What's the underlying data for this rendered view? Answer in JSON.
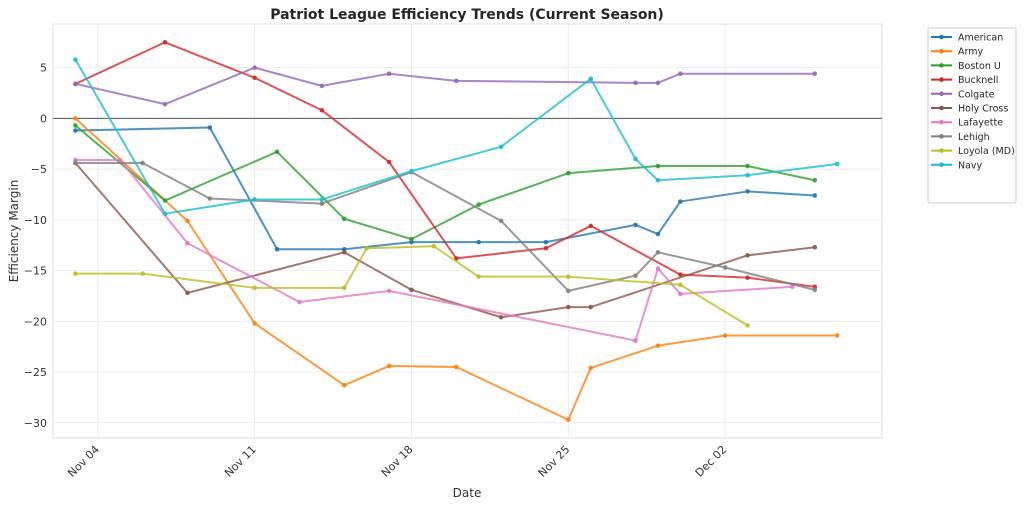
{
  "chart_data": {
    "type": "line",
    "title": "Patriot League Efficiency Trends (Current Season)",
    "xlabel": "Date",
    "ylabel": "Efficiency Margin",
    "x_tick_labels": [
      "Nov 04",
      "Nov 11",
      "Nov 18",
      "Nov 25",
      "Dec 02"
    ],
    "x_tick_dates": [
      "11-04",
      "11-11",
      "11-18",
      "11-25",
      "12-02"
    ],
    "y_ticks": [
      5,
      0,
      -5,
      -10,
      -15,
      -20,
      -25,
      -30
    ],
    "ylim": [
      -31.5,
      9.3
    ],
    "xlim": [
      "11-02",
      "12-09"
    ],
    "grid": true,
    "zero_line": true,
    "legend_position": "outside-top-right",
    "series": [
      {
        "name": "American",
        "color": "#1f77b4",
        "points": [
          [
            "11-03",
            -1.2
          ],
          [
            "11-09",
            -0.9
          ],
          [
            "11-12",
            -12.9
          ],
          [
            "11-15",
            -12.9
          ],
          [
            "11-18",
            -12.2
          ],
          [
            "11-21",
            -12.2
          ],
          [
            "11-24",
            -12.2
          ],
          [
            "11-28",
            -10.5
          ],
          [
            "11-29",
            -11.4
          ],
          [
            "11-30",
            -8.2
          ],
          [
            "12-03",
            -7.2
          ],
          [
            "12-06",
            -7.6
          ]
        ]
      },
      {
        "name": "Army",
        "color": "#ff7f0e",
        "points": [
          [
            "11-03",
            0.0
          ],
          [
            "11-08",
            -10.1
          ],
          [
            "11-11",
            -20.2
          ],
          [
            "11-15",
            -26.3
          ],
          [
            "11-17",
            -24.4
          ],
          [
            "11-20",
            -24.5
          ],
          [
            "11-25",
            -29.7
          ],
          [
            "11-26",
            -24.6
          ],
          [
            "11-29",
            -22.4
          ],
          [
            "12-02",
            -21.4
          ],
          [
            "12-07",
            -21.4
          ]
        ]
      },
      {
        "name": "Boston U",
        "color": "#2ca02c",
        "points": [
          [
            "11-03",
            -0.7
          ],
          [
            "11-07",
            -8.1
          ],
          [
            "11-12",
            -3.3
          ],
          [
            "11-15",
            -9.9
          ],
          [
            "11-18",
            -11.9
          ],
          [
            "11-21",
            -8.5
          ],
          [
            "11-25",
            -5.4
          ],
          [
            "11-29",
            -4.7
          ],
          [
            "12-03",
            -4.7
          ],
          [
            "12-06",
            -6.1
          ]
        ]
      },
      {
        "name": "Bucknell",
        "color": "#d62728",
        "points": [
          [
            "11-03",
            3.4
          ],
          [
            "11-07",
            7.5
          ],
          [
            "11-11",
            4.0
          ],
          [
            "11-14",
            0.8
          ],
          [
            "11-17",
            -4.3
          ],
          [
            "11-20",
            -13.8
          ],
          [
            "11-24",
            -12.8
          ],
          [
            "11-26",
            -10.6
          ],
          [
            "11-30",
            -15.4
          ],
          [
            "12-03",
            -15.7
          ],
          [
            "12-06",
            -16.6
          ]
        ]
      },
      {
        "name": "Colgate",
        "color": "#9467bd",
        "points": [
          [
            "11-03",
            3.4
          ],
          [
            "11-07",
            1.4
          ],
          [
            "11-11",
            5.0
          ],
          [
            "11-14",
            3.2
          ],
          [
            "11-17",
            4.4
          ],
          [
            "11-20",
            3.7
          ],
          [
            "11-28",
            3.5
          ],
          [
            "11-29",
            3.5
          ],
          [
            "11-30",
            4.4
          ],
          [
            "12-06",
            4.4
          ]
        ]
      },
      {
        "name": "Holy Cross",
        "color": "#8c564b",
        "points": [
          [
            "11-03",
            -4.4
          ],
          [
            "11-08",
            -17.2
          ],
          [
            "11-15",
            -13.2
          ],
          [
            "11-18",
            -16.9
          ],
          [
            "11-22",
            -19.6
          ],
          [
            "11-25",
            -18.6
          ],
          [
            "11-26",
            -18.6
          ],
          [
            "12-03",
            -13.5
          ],
          [
            "12-06",
            -12.7
          ]
        ]
      },
      {
        "name": "Lafayette",
        "color": "#e377c2",
        "points": [
          [
            "11-03",
            -4.1
          ],
          [
            "11-05",
            -4.1
          ],
          [
            "11-08",
            -12.3
          ],
          [
            "11-13",
            -18.1
          ],
          [
            "11-17",
            -17.0
          ],
          [
            "11-28",
            -21.9
          ],
          [
            "11-29",
            -14.8
          ],
          [
            "11-30",
            -17.3
          ],
          [
            "12-05",
            -16.6
          ]
        ]
      },
      {
        "name": "Lehigh",
        "color": "#7f7f7f",
        "points": [
          [
            "11-03",
            -4.4
          ],
          [
            "11-06",
            -4.4
          ],
          [
            "11-09",
            -7.9
          ],
          [
            "11-14",
            -8.4
          ],
          [
            "11-18",
            -5.3
          ],
          [
            "11-22",
            -10.1
          ],
          [
            "11-25",
            -17.0
          ],
          [
            "11-28",
            -15.5
          ],
          [
            "11-29",
            -13.2
          ],
          [
            "12-02",
            -14.7
          ],
          [
            "12-06",
            -16.9
          ]
        ]
      },
      {
        "name": "Loyola (MD)",
        "color": "#bcbd22",
        "points": [
          [
            "11-03",
            -15.3
          ],
          [
            "11-06",
            -15.3
          ],
          [
            "11-11",
            -16.7
          ],
          [
            "11-15",
            -16.7
          ],
          [
            "11-16",
            -12.8
          ],
          [
            "11-19",
            -12.6
          ],
          [
            "11-21",
            -15.6
          ],
          [
            "11-25",
            -15.6
          ],
          [
            "11-30",
            -16.4
          ],
          [
            "12-03",
            -20.4
          ]
        ]
      },
      {
        "name": "Navy",
        "color": "#17becf",
        "points": [
          [
            "11-03",
            5.8
          ],
          [
            "11-07",
            -9.4
          ],
          [
            "11-11",
            -8.0
          ],
          [
            "11-14",
            -8.0
          ],
          [
            "11-18",
            -5.2
          ],
          [
            "11-22",
            -2.8
          ],
          [
            "11-26",
            3.9
          ],
          [
            "11-28",
            -4.0
          ],
          [
            "11-29",
            -6.1
          ],
          [
            "12-03",
            -5.6
          ],
          [
            "12-07",
            -4.5
          ]
        ]
      }
    ]
  }
}
